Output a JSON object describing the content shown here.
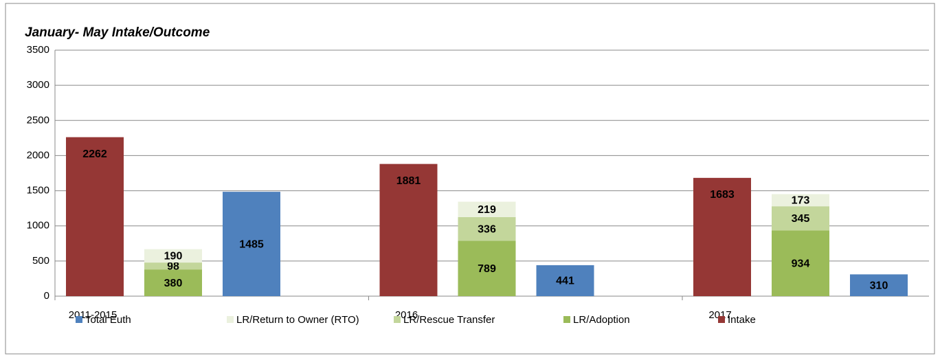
{
  "chart_data": {
    "type": "bar",
    "title": "January- May Intake/Outcome",
    "categories": [
      "2011-2015",
      "2016",
      "2017"
    ],
    "series": [
      {
        "name": "Total Euth",
        "color": "#4f81bd",
        "values": [
          1485,
          441,
          310
        ]
      },
      {
        "name": "LR/Return to Owner (RTO)",
        "color": "#ebf1de",
        "values": [
          190,
          219,
          173
        ]
      },
      {
        "name": "LR/Rescue Transfer",
        "color": "#c3d69b",
        "values": [
          98,
          336,
          345
        ]
      },
      {
        "name": "LR/Adoption",
        "color": "#9bbb59",
        "values": [
          380,
          789,
          934
        ]
      },
      {
        "name": "Intake",
        "color": "#953735",
        "values": [
          2262,
          1881,
          1683
        ]
      }
    ],
    "ylim": [
      0,
      3500
    ],
    "yticks": [
      0,
      500,
      1000,
      1500,
      2000,
      2500,
      3000,
      3500
    ],
    "grid": true,
    "legend": "bottom"
  }
}
